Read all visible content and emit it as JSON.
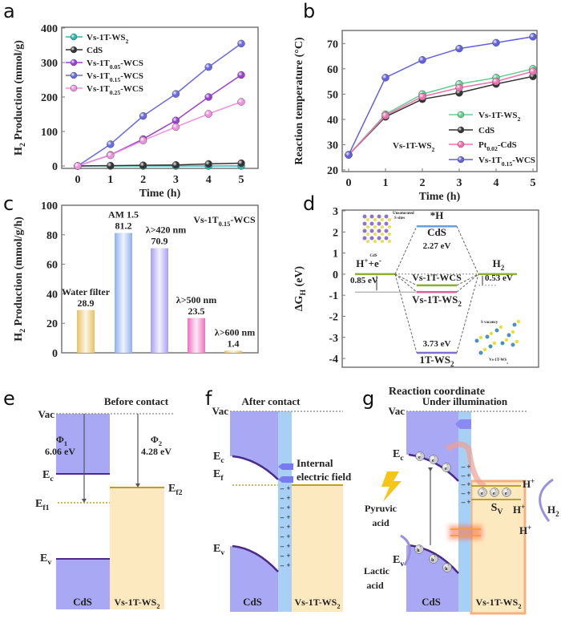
{
  "panel_labels": [
    "a",
    "b",
    "c",
    "d",
    "e",
    "f",
    "g"
  ],
  "chart_data": [
    {
      "panel": "a",
      "type": "line",
      "xlabel": "Time (h)",
      "ylabel": "H_{2} Production (mmol/g)",
      "x": [
        0,
        1,
        2,
        3,
        4,
        5
      ],
      "xlim": [
        0,
        5
      ],
      "ylim": [
        0,
        400
      ],
      "yticks": [
        0,
        100,
        200,
        300,
        400
      ],
      "legend": "top-left",
      "grid": false,
      "series": [
        {
          "name": "Vs-1T-WS_{2}",
          "color": "#2ab5b0",
          "values": [
            0,
            0,
            0,
            0,
            0,
            0
          ]
        },
        {
          "name": "CdS",
          "color": "#333333",
          "values": [
            0,
            1,
            2,
            3,
            6,
            8
          ]
        },
        {
          "name": "Vs-1T_{0.05}-WCS",
          "color": "#9a40d0",
          "values": [
            0,
            32,
            78,
            132,
            200,
            264
          ]
        },
        {
          "name": "Vs-1T_{0.15}-WCS",
          "color": "#6a6ae0",
          "values": [
            0,
            63,
            145,
            209,
            287,
            355
          ]
        },
        {
          "name": "Vs-1T_{0.25}-WCS",
          "color": "#f090e0",
          "values": [
            0,
            31,
            74,
            113,
            151,
            186
          ]
        }
      ]
    },
    {
      "panel": "b",
      "type": "line",
      "xlabel": "Time (h)",
      "ylabel": "Reaction  temperature (°C)",
      "x": [
        0,
        1,
        2,
        3,
        4,
        5
      ],
      "xlim": [
        0,
        5
      ],
      "ylim": [
        20,
        75
      ],
      "yticks": [
        20,
        30,
        40,
        50,
        60,
        70
      ],
      "legend": "bottom-right",
      "grid": false,
      "annotation": "Vs-1T-WS_{2}",
      "series": [
        {
          "name": "Vs-1T-WS_{2}",
          "color": "#60d090",
          "values": [
            26,
            42,
            50,
            54,
            56.5,
            60
          ]
        },
        {
          "name": "CdS",
          "color": "#333333",
          "values": [
            26,
            41,
            48,
            50.5,
            54,
            57
          ]
        },
        {
          "name": "Pt_{0.02}-CdS",
          "color": "#f070b0",
          "values": [
            26,
            41.5,
            49,
            52.5,
            55,
            59
          ]
        },
        {
          "name": "Vs-1T_{0.15}-WCS",
          "color": "#6060e0",
          "values": [
            26,
            56.5,
            63.5,
            68,
            70.3,
            72.7
          ]
        }
      ]
    },
    {
      "panel": "c",
      "type": "bar",
      "ylabel": "H_{2} Production (mmol/g/h)",
      "ylim": [
        0,
        100
      ],
      "yticks": [
        0,
        20,
        40,
        60,
        80,
        100
      ],
      "grid": false,
      "annotation": "Vs-1T_{0.15}-WCS",
      "categories": [
        "Water filter",
        "AM 1.5",
        "λ>420 nm",
        "λ>500 nm",
        "λ>600 nm"
      ],
      "values": [
        28.9,
        81.2,
        70.9,
        23.5,
        1.4
      ],
      "value_labels": [
        "28.9",
        "81.2",
        "70.9",
        "23.5",
        "1.4"
      ],
      "colors": [
        "#e8c060",
        "#8fb0f0",
        "#a9a0f0",
        "#f070c0",
        "#e8c060"
      ]
    },
    {
      "panel": "d",
      "type": "energy-level",
      "xlabel": "Reaction coordinate",
      "ylabel": "ΔG_{H} (eV)",
      "ylim": [
        -4.4,
        3
      ],
      "yticks": [
        -4,
        -3,
        -2,
        -1,
        0,
        1,
        2,
        3
      ],
      "start_label": "H^{+}+e^{-}",
      "end_label": "H_{2}",
      "intermediate_label": "*H",
      "start_value": 0,
      "end_value": 0,
      "levels": [
        {
          "name": "CdS",
          "value": 2.27,
          "energy_label": "2.27 eV",
          "color": "#6aa0d8"
        },
        {
          "name": "Vs-1T-WCS",
          "value": -0.53,
          "energy_label": "0.53 eV",
          "color": "#8ab030"
        },
        {
          "name": "Vs-1T-WS_{2}",
          "value": -0.85,
          "energy_label": "0.85 eV",
          "color": "#e060a0"
        },
        {
          "name": "1T-WS_{2}",
          "value": -3.73,
          "energy_label": "3.73 eV",
          "color": "#8070d0"
        }
      ],
      "insets": {
        "cds_note": "Unsaturated",
        "cds_note2": "S sites",
        "cds_caption": "CdS",
        "ws2_note": "S vacancy",
        "ws2_caption": "Vs-1T-WS_{2}"
      }
    }
  ],
  "schematics": {
    "e": {
      "title": "Before contact",
      "vac": "Vac",
      "phi1": "Φ_{1}",
      "phi1_value": "6.06 eV",
      "phi2": "Φ_{2}",
      "phi2_value": "4.28 eV",
      "ec": "E_{c}",
      "ef1": "E_{f1}",
      "ef2": "E_{f2}",
      "ev": "E_{v}",
      "left_material": "CdS",
      "right_material": "Vs-1T-WS_{2}"
    },
    "f": {
      "title": "After contact",
      "vac": "Vac",
      "ec": "E_{c}",
      "ef": "E_{f}",
      "ev": "E_{v}",
      "field_label_1": "Internal",
      "field_label_2": "electric field",
      "left_material": "CdS",
      "right_material": "Vs-1T-WS_{2}"
    },
    "g": {
      "title": "Under illumination",
      "vac": "Vac",
      "ec": "E_{c}",
      "ev": "E_{v}",
      "sv": "S_{V}",
      "electron": "e^{-}",
      "hole": "h^{+}",
      "hplus": "H^{+}",
      "h2": "H_{2}",
      "pyruvic_1": "Pyruvic",
      "pyruvic_2": "acid",
      "lactic_1": "Lactic",
      "lactic_2": "acid",
      "left_material": "CdS",
      "right_material": "Vs-1T-WS_{2}"
    }
  },
  "colors": {
    "cds_band": "#a8a8f5",
    "ws2_band": "#fde9c0",
    "interface": "#a8d0f5",
    "band_edge": "#4a2a8a",
    "fermi": "#c0a020"
  }
}
